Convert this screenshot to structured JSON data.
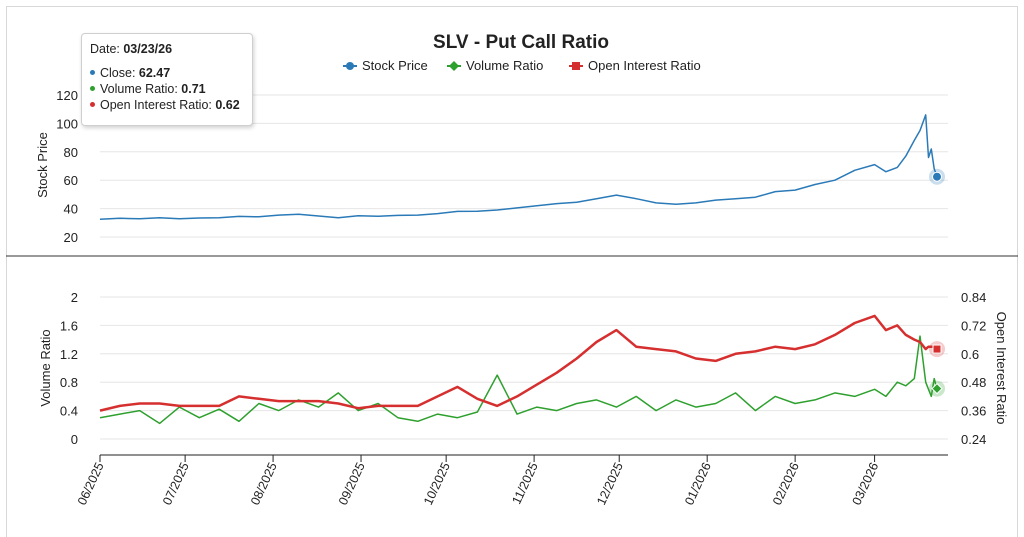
{
  "chart_data": {
    "type": "line",
    "title": "SLV - Put Call Ratio",
    "legend": {
      "placement": "top-center",
      "items": [
        {
          "label": "Stock Price",
          "color": "#2a7ab8",
          "marker": "circle"
        },
        {
          "label": "Volume Ratio",
          "color": "#2ea02e",
          "marker": "diamond"
        },
        {
          "label": "Open Interest Ratio",
          "color": "#d62f2f",
          "marker": "square"
        }
      ]
    },
    "x_start": "2025-06-01",
    "x_end": "2026-03-23",
    "x_ticks": [
      "06/2025",
      "07/2025",
      "08/2025",
      "09/2025",
      "10/2025",
      "11/2025",
      "12/2025",
      "01/2026",
      "02/2026",
      "03/2026"
    ],
    "x_tick_dates": [
      "2025-06-01",
      "2025-07-01",
      "2025-08-01",
      "2025-09-01",
      "2025-10-01",
      "2025-11-01",
      "2025-12-01",
      "2026-01-01",
      "2026-02-01",
      "2026-03-01"
    ],
    "top_panel": {
      "ylabel": "Stock Price",
      "yticks": [
        20,
        40,
        60,
        80,
        100,
        120
      ],
      "ylim": [
        20,
        120
      ],
      "grid": true,
      "series": {
        "name": "Stock Price",
        "color": "#2a7ab8",
        "points": [
          [
            "2025-06-01",
            32.5
          ],
          [
            "2025-06-08",
            33.2
          ],
          [
            "2025-06-15",
            32.8
          ],
          [
            "2025-06-22",
            33.5
          ],
          [
            "2025-06-29",
            32.9
          ],
          [
            "2025-07-06",
            33.4
          ],
          [
            "2025-07-13",
            33.6
          ],
          [
            "2025-07-20",
            34.5
          ],
          [
            "2025-07-27",
            34.2
          ],
          [
            "2025-08-03",
            35.4
          ],
          [
            "2025-08-10",
            36.0
          ],
          [
            "2025-08-17",
            34.8
          ],
          [
            "2025-08-24",
            33.6
          ],
          [
            "2025-08-31",
            35.0
          ],
          [
            "2025-09-07",
            34.6
          ],
          [
            "2025-09-14",
            35.2
          ],
          [
            "2025-09-21",
            35.4
          ],
          [
            "2025-09-28",
            36.5
          ],
          [
            "2025-10-05",
            38.0
          ],
          [
            "2025-10-12",
            38.2
          ],
          [
            "2025-10-19",
            39.0
          ],
          [
            "2025-10-26",
            40.5
          ],
          [
            "2025-11-02",
            42.0
          ],
          [
            "2025-11-09",
            43.5
          ],
          [
            "2025-11-16",
            44.5
          ],
          [
            "2025-11-23",
            47.0
          ],
          [
            "2025-11-30",
            49.5
          ],
          [
            "2025-12-07",
            47.0
          ],
          [
            "2025-12-14",
            44.0
          ],
          [
            "2025-12-21",
            43.0
          ],
          [
            "2025-12-28",
            44.0
          ],
          [
            "2026-01-04",
            46.0
          ],
          [
            "2026-01-11",
            47.0
          ],
          [
            "2026-01-18",
            48.0
          ],
          [
            "2026-01-25",
            52.0
          ],
          [
            "2026-02-01",
            53.0
          ],
          [
            "2026-02-08",
            57.0
          ],
          [
            "2026-02-15",
            60.0
          ],
          [
            "2026-02-22",
            67.0
          ],
          [
            "2026-03-01",
            71.0
          ],
          [
            "2026-03-05",
            66.0
          ],
          [
            "2026-03-09",
            69.0
          ],
          [
            "2026-03-12",
            77.0
          ],
          [
            "2026-03-15",
            88.0
          ],
          [
            "2026-03-17",
            95.0
          ],
          [
            "2026-03-19",
            106.0
          ],
          [
            "2026-03-20",
            76.0
          ],
          [
            "2026-03-21",
            82.0
          ],
          [
            "2026-03-22",
            68.0
          ],
          [
            "2026-03-23",
            62.47
          ]
        ]
      }
    },
    "bottom_panel": {
      "ylabel_left": "Volume Ratio",
      "ylabel_right": "Open Interest Ratio",
      "yticks_left": [
        0,
        0.4,
        0.8,
        1.2,
        1.6,
        2
      ],
      "ylim_left": [
        0,
        2
      ],
      "yticks_right": [
        0.24,
        0.36,
        0.48,
        0.6,
        0.72,
        0.84
      ],
      "ylim_right": [
        0.24,
        0.84
      ],
      "grid": true,
      "series": [
        {
          "name": "Volume Ratio",
          "axis": "left",
          "color": "#2ea02e",
          "points": [
            [
              "2025-06-01",
              0.3
            ],
            [
              "2025-06-08",
              0.35
            ],
            [
              "2025-06-15",
              0.4
            ],
            [
              "2025-06-22",
              0.22
            ],
            [
              "2025-06-29",
              0.45
            ],
            [
              "2025-07-06",
              0.3
            ],
            [
              "2025-07-13",
              0.42
            ],
            [
              "2025-07-20",
              0.25
            ],
            [
              "2025-07-27",
              0.5
            ],
            [
              "2025-08-03",
              0.4
            ],
            [
              "2025-08-10",
              0.55
            ],
            [
              "2025-08-17",
              0.45
            ],
            [
              "2025-08-24",
              0.65
            ],
            [
              "2025-08-31",
              0.4
            ],
            [
              "2025-09-07",
              0.5
            ],
            [
              "2025-09-14",
              0.3
            ],
            [
              "2025-09-21",
              0.25
            ],
            [
              "2025-09-28",
              0.35
            ],
            [
              "2025-10-05",
              0.3
            ],
            [
              "2025-10-12",
              0.38
            ],
            [
              "2025-10-19",
              0.9
            ],
            [
              "2025-10-26",
              0.35
            ],
            [
              "2025-11-02",
              0.45
            ],
            [
              "2025-11-09",
              0.4
            ],
            [
              "2025-11-16",
              0.5
            ],
            [
              "2025-11-23",
              0.55
            ],
            [
              "2025-11-30",
              0.45
            ],
            [
              "2025-12-07",
              0.6
            ],
            [
              "2025-12-14",
              0.4
            ],
            [
              "2025-12-21",
              0.55
            ],
            [
              "2025-12-28",
              0.45
            ],
            [
              "2026-01-04",
              0.5
            ],
            [
              "2026-01-11",
              0.65
            ],
            [
              "2026-01-18",
              0.4
            ],
            [
              "2026-01-25",
              0.6
            ],
            [
              "2026-02-01",
              0.5
            ],
            [
              "2026-02-08",
              0.55
            ],
            [
              "2026-02-15",
              0.65
            ],
            [
              "2026-02-22",
              0.6
            ],
            [
              "2026-03-01",
              0.7
            ],
            [
              "2026-03-05",
              0.6
            ],
            [
              "2026-03-09",
              0.8
            ],
            [
              "2026-03-12",
              0.75
            ],
            [
              "2026-03-15",
              0.85
            ],
            [
              "2026-03-17",
              1.45
            ],
            [
              "2026-03-19",
              0.8
            ],
            [
              "2026-03-20",
              0.7
            ],
            [
              "2026-03-21",
              0.6
            ],
            [
              "2026-03-22",
              0.85
            ],
            [
              "2026-03-23",
              0.71
            ]
          ]
        },
        {
          "name": "Open Interest Ratio",
          "axis": "right",
          "color": "#d62f2f",
          "points": [
            [
              "2025-06-01",
              0.36
            ],
            [
              "2025-06-08",
              0.38
            ],
            [
              "2025-06-15",
              0.39
            ],
            [
              "2025-06-22",
              0.39
            ],
            [
              "2025-06-29",
              0.38
            ],
            [
              "2025-07-06",
              0.38
            ],
            [
              "2025-07-13",
              0.38
            ],
            [
              "2025-07-20",
              0.42
            ],
            [
              "2025-07-27",
              0.41
            ],
            [
              "2025-08-03",
              0.4
            ],
            [
              "2025-08-10",
              0.4
            ],
            [
              "2025-08-17",
              0.4
            ],
            [
              "2025-08-24",
              0.39
            ],
            [
              "2025-08-31",
              0.37
            ],
            [
              "2025-09-07",
              0.38
            ],
            [
              "2025-09-14",
              0.38
            ],
            [
              "2025-09-21",
              0.38
            ],
            [
              "2025-09-28",
              0.42
            ],
            [
              "2025-10-05",
              0.46
            ],
            [
              "2025-10-12",
              0.41
            ],
            [
              "2025-10-19",
              0.38
            ],
            [
              "2025-10-26",
              0.42
            ],
            [
              "2025-11-02",
              0.47
            ],
            [
              "2025-11-09",
              0.52
            ],
            [
              "2025-11-16",
              0.58
            ],
            [
              "2025-11-23",
              0.65
            ],
            [
              "2025-11-30",
              0.7
            ],
            [
              "2025-12-07",
              0.63
            ],
            [
              "2025-12-14",
              0.62
            ],
            [
              "2025-12-21",
              0.61
            ],
            [
              "2025-12-28",
              0.58
            ],
            [
              "2026-01-04",
              0.57
            ],
            [
              "2026-01-11",
              0.6
            ],
            [
              "2026-01-18",
              0.61
            ],
            [
              "2026-01-25",
              0.63
            ],
            [
              "2026-02-01",
              0.62
            ],
            [
              "2026-02-08",
              0.64
            ],
            [
              "2026-02-15",
              0.68
            ],
            [
              "2026-02-22",
              0.73
            ],
            [
              "2026-03-01",
              0.76
            ],
            [
              "2026-03-05",
              0.7
            ],
            [
              "2026-03-09",
              0.72
            ],
            [
              "2026-03-12",
              0.68
            ],
            [
              "2026-03-15",
              0.66
            ],
            [
              "2026-03-17",
              0.65
            ],
            [
              "2026-03-19",
              0.62
            ],
            [
              "2026-03-20",
              0.63
            ],
            [
              "2026-03-21",
              0.63
            ],
            [
              "2026-03-22",
              0.63
            ],
            [
              "2026-03-23",
              0.62
            ]
          ]
        }
      ]
    }
  },
  "tooltip": {
    "date_label": "Date: ",
    "date_value": "03/23/26",
    "rows": [
      {
        "label": "Close: ",
        "value": "62.47",
        "color": "#2a7ab8"
      },
      {
        "label": "Volume Ratio: ",
        "value": "0.71",
        "color": "#2ea02e"
      },
      {
        "label": "Open Interest Ratio: ",
        "value": "0.62",
        "color": "#d62f2f"
      }
    ]
  }
}
